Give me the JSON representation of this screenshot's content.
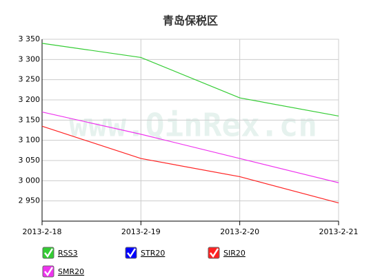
{
  "chart_data": {
    "type": "line",
    "title": "青岛保税区",
    "watermark": "www.QinRex.cn",
    "categories": [
      "2013-2-18",
      "2013-2-19",
      "2013-2-20",
      "2013-2-21"
    ],
    "series": [
      {
        "name": "RSS3",
        "color": "#33cc33",
        "values": [
          3340,
          3305,
          3205,
          3160
        ]
      },
      {
        "name": "STR20",
        "color": "#0000ff",
        "values": [
          null,
          null,
          null,
          null
        ]
      },
      {
        "name": "SIR20",
        "color": "#ff2222",
        "values": [
          3135,
          3055,
          3010,
          2945
        ]
      },
      {
        "name": "SMR20",
        "color": "#ee33ee",
        "values": [
          3170,
          3115,
          3055,
          2995
        ]
      }
    ],
    "ylim": [
      2900,
      3350
    ],
    "yticks": [
      {
        "value": 2950,
        "label": "2 950"
      },
      {
        "value": 3000,
        "label": "3 000"
      },
      {
        "value": 3050,
        "label": "3 050"
      },
      {
        "value": 3100,
        "label": "3 100"
      },
      {
        "value": 3150,
        "label": "3 150"
      },
      {
        "value": 3200,
        "label": "3 200"
      },
      {
        "value": 3250,
        "label": "3 250"
      },
      {
        "value": 3300,
        "label": "3 300"
      },
      {
        "value": 3350,
        "label": "3 350"
      }
    ],
    "grid": true
  }
}
